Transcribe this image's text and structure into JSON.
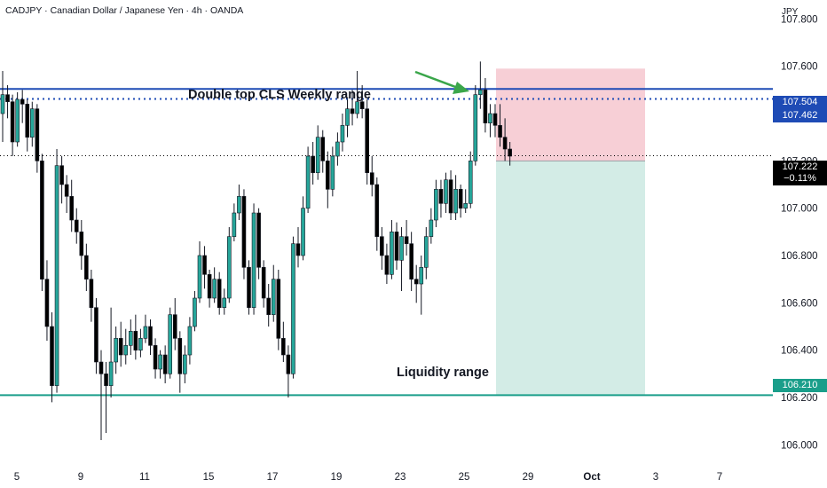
{
  "header": {
    "title": "CADJPY · Canadian Dollar / Japanese Yen · 4h · OANDA",
    "currency": "JPY"
  },
  "annotations": {
    "double_top": "Double top CLS Weekly range",
    "liquidity": "Liquidity range"
  },
  "price_labels": {
    "upper_level": "107.504",
    "dotted_level": "107.462",
    "last_price": "107.222",
    "last_change": "−0.11%",
    "lower_level": "106.210"
  },
  "colors": {
    "up": "#26a69a",
    "down": "#000000",
    "upper_line": "#1e4bb5",
    "lower_line": "#1a9e8a",
    "stop_zone": "#f7cfd6",
    "target_zone": "#d3ece6",
    "arrow": "#3aa64a"
  },
  "chart_data": {
    "type": "candlestick",
    "symbol": "CADJPY",
    "timeframe": "4h",
    "ylim": [
      105.93,
      107.88
    ],
    "y_ticks": [
      "107.800",
      "107.600",
      "107.400",
      "107.200",
      "107.000",
      "106.800",
      "106.600",
      "106.400",
      "106.200",
      "106.000"
    ],
    "x_ticks": [
      "5",
      "9",
      "11",
      "15",
      "17",
      "19",
      "23",
      "25",
      "29",
      "Oct",
      "3",
      "7"
    ],
    "levels": [
      {
        "price": 107.504,
        "style": "solid"
      },
      {
        "price": 107.462,
        "style": "dotted"
      },
      {
        "price": 107.222,
        "style": "dotted"
      },
      {
        "price": 106.21,
        "style": "solid"
      }
    ],
    "position": {
      "entry": 107.2,
      "stop": 107.59,
      "target": 106.21
    },
    "candles": [
      [
        107.4,
        107.48,
        107.58,
        107.28
      ],
      [
        107.48,
        107.45,
        107.52,
        107.38
      ],
      [
        107.45,
        107.28,
        107.48,
        107.22
      ],
      [
        107.28,
        107.46,
        107.49,
        107.26
      ],
      [
        107.46,
        107.44,
        107.5,
        107.36
      ],
      [
        107.44,
        107.3,
        107.46,
        107.24
      ],
      [
        107.3,
        107.42,
        107.45,
        107.26
      ],
      [
        107.42,
        107.2,
        107.44,
        107.15
      ],
      [
        107.2,
        106.7,
        107.23,
        106.65
      ],
      [
        106.7,
        106.5,
        106.78,
        106.44
      ],
      [
        106.5,
        106.25,
        106.56,
        106.18
      ],
      [
        106.25,
        107.18,
        107.25,
        106.22
      ],
      [
        107.18,
        107.1,
        107.22,
        107.02
      ],
      [
        107.1,
        107.05,
        107.14,
        106.98
      ],
      [
        107.05,
        106.95,
        107.12,
        106.9
      ],
      [
        106.95,
        106.9,
        107.0,
        106.85
      ],
      [
        106.9,
        106.8,
        106.95,
        106.74
      ],
      [
        106.8,
        106.7,
        106.85,
        106.65
      ],
      [
        106.7,
        106.58,
        106.74,
        106.52
      ],
      [
        106.58,
        106.35,
        106.62,
        106.3
      ],
      [
        106.35,
        106.3,
        106.4,
        106.02
      ],
      [
        106.3,
        106.25,
        106.35,
        106.05
      ],
      [
        106.25,
        106.35,
        106.58,
        106.2
      ],
      [
        106.35,
        106.45,
        106.5,
        106.3
      ],
      [
        106.45,
        106.38,
        106.52,
        106.33
      ],
      [
        106.38,
        106.42,
        106.49,
        106.34
      ],
      [
        106.42,
        106.48,
        106.53,
        106.38
      ],
      [
        106.48,
        106.4,
        106.55,
        106.36
      ],
      [
        106.4,
        106.45,
        106.49,
        106.37
      ],
      [
        106.45,
        106.5,
        106.55,
        106.43
      ],
      [
        106.5,
        106.42,
        106.53,
        106.38
      ],
      [
        106.42,
        106.32,
        106.45,
        106.28
      ],
      [
        106.32,
        106.38,
        106.4,
        106.28
      ],
      [
        106.38,
        106.3,
        106.42,
        106.26
      ],
      [
        106.3,
        106.55,
        106.58,
        106.28
      ],
      [
        106.55,
        106.45,
        106.62,
        106.4
      ],
      [
        106.45,
        106.3,
        106.48,
        106.22
      ],
      [
        106.3,
        106.38,
        106.42,
        106.26
      ],
      [
        106.38,
        106.5,
        106.54,
        106.34
      ],
      [
        106.5,
        106.62,
        106.65,
        106.48
      ],
      [
        106.62,
        106.8,
        106.86,
        106.6
      ],
      [
        106.8,
        106.72,
        106.84,
        106.66
      ],
      [
        106.72,
        106.62,
        106.74,
        106.58
      ],
      [
        106.62,
        106.7,
        106.75,
        106.6
      ],
      [
        106.7,
        106.58,
        106.73,
        106.55
      ],
      [
        106.58,
        106.62,
        106.66,
        106.55
      ],
      [
        106.62,
        106.88,
        106.92,
        106.6
      ],
      [
        106.88,
        106.98,
        107.02,
        106.86
      ],
      [
        106.98,
        107.05,
        107.1,
        106.95
      ],
      [
        107.05,
        106.75,
        107.08,
        106.7
      ],
      [
        106.75,
        106.58,
        106.78,
        106.55
      ],
      [
        106.58,
        106.98,
        107.02,
        106.55
      ],
      [
        106.98,
        106.75,
        107.0,
        106.7
      ],
      [
        106.75,
        106.62,
        106.78,
        106.58
      ],
      [
        106.62,
        106.55,
        106.68,
        106.5
      ],
      [
        106.55,
        106.7,
        106.76,
        106.52
      ],
      [
        106.7,
        106.45,
        106.74,
        106.4
      ],
      [
        106.45,
        106.38,
        106.52,
        106.35
      ],
      [
        106.38,
        106.3,
        106.42,
        106.2
      ],
      [
        106.3,
        106.85,
        106.88,
        106.28
      ],
      [
        106.85,
        106.8,
        106.92,
        106.75
      ],
      [
        106.8,
        107.0,
        107.05,
        106.78
      ],
      [
        107.0,
        107.22,
        107.26,
        106.98
      ],
      [
        107.22,
        107.15,
        107.28,
        107.1
      ],
      [
        107.15,
        107.3,
        107.35,
        107.12
      ],
      [
        107.3,
        107.2,
        107.33,
        107.15
      ],
      [
        107.2,
        107.08,
        107.24,
        107.0
      ],
      [
        107.08,
        107.22,
        107.26,
        107.05
      ],
      [
        107.22,
        107.28,
        107.32,
        107.18
      ],
      [
        107.28,
        107.35,
        107.4,
        107.24
      ],
      [
        107.35,
        107.42,
        107.46,
        107.3
      ],
      [
        107.42,
        107.4,
        107.5,
        107.35
      ],
      [
        107.4,
        107.45,
        107.58,
        107.38
      ],
      [
        107.45,
        107.42,
        107.52,
        107.38
      ],
      [
        107.42,
        107.15,
        107.46,
        107.1
      ],
      [
        107.15,
        107.1,
        107.22,
        107.05
      ],
      [
        107.1,
        106.88,
        107.13,
        106.82
      ],
      [
        106.88,
        106.8,
        106.92,
        106.74
      ],
      [
        106.8,
        106.72,
        106.85,
        106.68
      ],
      [
        106.72,
        106.9,
        106.95,
        106.7
      ],
      [
        106.9,
        106.78,
        106.94,
        106.74
      ],
      [
        106.78,
        106.88,
        106.92,
        106.65
      ],
      [
        106.88,
        106.85,
        106.95,
        106.8
      ],
      [
        106.85,
        106.7,
        106.9,
        106.65
      ],
      [
        106.7,
        106.68,
        106.76,
        106.6
      ],
      [
        106.68,
        106.75,
        106.8,
        106.55
      ],
      [
        106.75,
        106.88,
        106.92,
        106.7
      ],
      [
        106.88,
        106.95,
        107.0,
        106.85
      ],
      [
        106.95,
        107.08,
        107.12,
        106.92
      ],
      [
        107.08,
        107.02,
        107.12,
        106.96
      ],
      [
        107.02,
        107.12,
        107.15,
        106.98
      ],
      [
        107.12,
        106.98,
        107.16,
        106.95
      ],
      [
        106.98,
        107.08,
        107.14,
        106.95
      ],
      [
        107.08,
        107.0,
        107.1,
        106.96
      ],
      [
        107.0,
        107.02,
        107.08,
        106.98
      ],
      [
        107.02,
        107.2,
        107.24,
        107.0
      ],
      [
        107.2,
        107.48,
        107.52,
        107.18
      ],
      [
        107.48,
        107.5,
        107.62,
        107.42
      ],
      [
        107.5,
        107.36,
        107.55,
        107.32
      ],
      [
        107.36,
        107.4,
        107.44,
        107.3
      ],
      [
        107.4,
        107.35,
        107.44,
        107.3
      ],
      [
        107.35,
        107.3,
        107.44,
        107.26
      ],
      [
        107.3,
        107.25,
        107.38,
        107.2
      ],
      [
        107.25,
        107.22,
        107.28,
        107.18
      ]
    ]
  }
}
